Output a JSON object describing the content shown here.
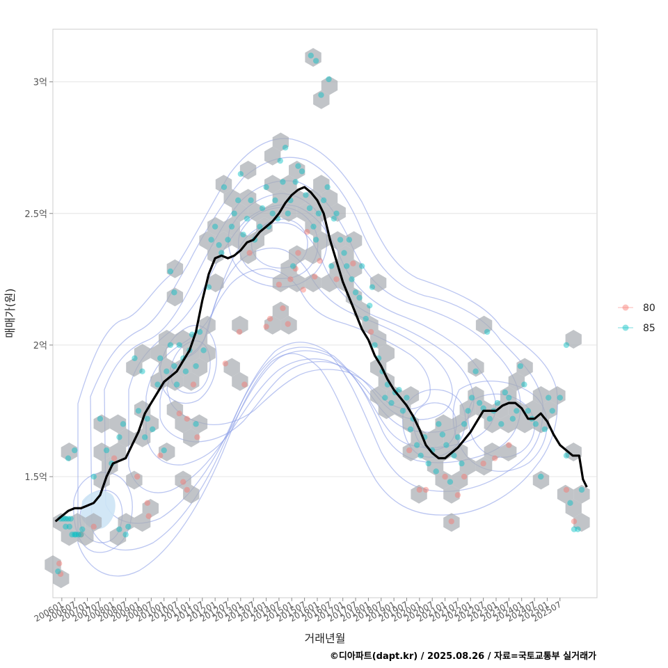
{
  "chart_data": {
    "type": "scatter",
    "xlabel": "거래년월",
    "ylabel": "매매가(원)",
    "caption": "©디아파트(dapt.kr) / 2025.08.26 / 자료=국토교통부 실거래가",
    "x_tick_labels": [
      "200601",
      "200607",
      "200701",
      "200707",
      "200801",
      "200807",
      "200901",
      "200907",
      "201001",
      "201007",
      "201101",
      "201107",
      "201201",
      "201207",
      "201301",
      "201307",
      "201401",
      "201407",
      "201501",
      "201507",
      "201601",
      "201607",
      "201701",
      "201707",
      "201801",
      "201807",
      "201901",
      "201907",
      "202001",
      "202007",
      "202101",
      "202107",
      "202201",
      "202207",
      "202301",
      "202307",
      "202401",
      "202407",
      "202501",
      "202507"
    ],
    "y_ticks": [
      {
        "value": 1.5,
        "label": "1.5억"
      },
      {
        "value": 2.0,
        "label": "2억"
      },
      {
        "value": 2.5,
        "label": "2.5억"
      },
      {
        "value": 3.0,
        "label": "3억"
      }
    ],
    "xlim": [
      -0.2,
      42.4
    ],
    "ylim": [
      1.04,
      3.2
    ],
    "grid": true,
    "legend_position": "right",
    "legend": [
      {
        "label": "80",
        "color": "#F8766D"
      },
      {
        "label": "85",
        "color": "#00BFC4"
      }
    ],
    "colors": {
      "trend": "#000000",
      "hex": "#a9adb3",
      "contour": "#8da0e8",
      "panel": "#ffffff",
      "grid": "#e4e4e4"
    },
    "trend_line": [
      [
        0.0,
        1.33
      ],
      [
        0.5,
        1.35
      ],
      [
        1.0,
        1.37
      ],
      [
        1.5,
        1.38
      ],
      [
        2.0,
        1.38
      ],
      [
        2.5,
        1.39
      ],
      [
        3.0,
        1.4
      ],
      [
        3.5,
        1.43
      ],
      [
        4.0,
        1.5
      ],
      [
        4.5,
        1.55
      ],
      [
        5.0,
        1.56
      ],
      [
        5.5,
        1.57
      ],
      [
        6.0,
        1.62
      ],
      [
        6.5,
        1.67
      ],
      [
        7.0,
        1.74
      ],
      [
        7.5,
        1.78
      ],
      [
        8.0,
        1.82
      ],
      [
        8.5,
        1.86
      ],
      [
        9.0,
        1.88
      ],
      [
        9.5,
        1.9
      ],
      [
        10.0,
        1.94
      ],
      [
        10.5,
        1.98
      ],
      [
        11.0,
        2.05
      ],
      [
        11.5,
        2.17
      ],
      [
        12.0,
        2.27
      ],
      [
        12.5,
        2.33
      ],
      [
        13.0,
        2.34
      ],
      [
        13.5,
        2.33
      ],
      [
        14.0,
        2.34
      ],
      [
        14.5,
        2.36
      ],
      [
        15.0,
        2.39
      ],
      [
        15.5,
        2.4
      ],
      [
        16.0,
        2.43
      ],
      [
        16.5,
        2.45
      ],
      [
        17.0,
        2.47
      ],
      [
        17.5,
        2.5
      ],
      [
        18.0,
        2.54
      ],
      [
        18.5,
        2.57
      ],
      [
        19.0,
        2.59
      ],
      [
        19.5,
        2.6
      ],
      [
        20.0,
        2.58
      ],
      [
        20.5,
        2.55
      ],
      [
        21.0,
        2.5
      ],
      [
        21.5,
        2.4
      ],
      [
        22.0,
        2.32
      ],
      [
        22.5,
        2.24
      ],
      [
        23.0,
        2.18
      ],
      [
        23.5,
        2.12
      ],
      [
        24.0,
        2.06
      ],
      [
        24.5,
        2.02
      ],
      [
        25.0,
        1.96
      ],
      [
        25.5,
        1.92
      ],
      [
        26.0,
        1.87
      ],
      [
        26.5,
        1.83
      ],
      [
        27.0,
        1.8
      ],
      [
        27.5,
        1.77
      ],
      [
        28.0,
        1.73
      ],
      [
        28.5,
        1.68
      ],
      [
        29.0,
        1.62
      ],
      [
        29.5,
        1.59
      ],
      [
        30.0,
        1.57
      ],
      [
        30.5,
        1.57
      ],
      [
        31.0,
        1.59
      ],
      [
        31.5,
        1.61
      ],
      [
        32.0,
        1.64
      ],
      [
        32.5,
        1.67
      ],
      [
        33.0,
        1.71
      ],
      [
        33.5,
        1.75
      ],
      [
        34.0,
        1.75
      ],
      [
        34.5,
        1.75
      ],
      [
        35.0,
        1.77
      ],
      [
        35.5,
        1.78
      ],
      [
        36.0,
        1.78
      ],
      [
        36.5,
        1.76
      ],
      [
        37.0,
        1.72
      ],
      [
        37.5,
        1.72
      ],
      [
        38.0,
        1.74
      ],
      [
        38.5,
        1.71
      ],
      [
        39.0,
        1.66
      ],
      [
        39.5,
        1.62
      ],
      [
        40.0,
        1.6
      ],
      [
        40.5,
        1.58
      ],
      [
        41.0,
        1.58
      ],
      [
        41.3,
        1.49
      ],
      [
        41.6,
        1.46
      ]
    ],
    "series": [
      {
        "name": "80",
        "points": [
          [
            0.3,
            1.17
          ],
          [
            0.4,
            1.13
          ],
          [
            2.0,
            1.28
          ],
          [
            3.0,
            1.31
          ],
          [
            4.6,
            1.57
          ],
          [
            6.4,
            1.5
          ],
          [
            7.2,
            1.4
          ],
          [
            7.3,
            1.35
          ],
          [
            8.2,
            1.58
          ],
          [
            9.7,
            1.74
          ],
          [
            10.3,
            1.72
          ],
          [
            10.8,
            1.85
          ],
          [
            11.1,
            1.65
          ],
          [
            10.0,
            1.48
          ],
          [
            10.3,
            1.45
          ],
          [
            13.3,
            1.93
          ],
          [
            14.4,
            2.05
          ],
          [
            14.8,
            1.85
          ],
          [
            15.2,
            2.35
          ],
          [
            16.5,
            2.07
          ],
          [
            16.8,
            2.1
          ],
          [
            17.5,
            2.23
          ],
          [
            17.8,
            2.14
          ],
          [
            18.2,
            2.08
          ],
          [
            18.4,
            2.25
          ],
          [
            18.8,
            2.29
          ],
          [
            19.0,
            2.35
          ],
          [
            19.4,
            2.21
          ],
          [
            19.7,
            2.43
          ],
          [
            20.3,
            2.26
          ],
          [
            20.7,
            2.32
          ],
          [
            22.0,
            2.25
          ],
          [
            23.3,
            2.31
          ],
          [
            24.7,
            2.05
          ],
          [
            27.7,
            1.6
          ],
          [
            28.5,
            1.45
          ],
          [
            29.0,
            1.45
          ],
          [
            30.5,
            1.5
          ],
          [
            31.0,
            1.33
          ],
          [
            31.5,
            1.43
          ],
          [
            32.0,
            1.5
          ],
          [
            33.5,
            1.55
          ],
          [
            34.4,
            1.57
          ],
          [
            35.5,
            1.62
          ],
          [
            40.0,
            1.45
          ],
          [
            40.6,
            1.33
          ]
        ]
      },
      {
        "name": "85",
        "points": [
          [
            0.4,
            1.34
          ],
          [
            0.6,
            1.34
          ],
          [
            0.8,
            1.34
          ],
          [
            1.0,
            1.34
          ],
          [
            1.2,
            1.34
          ],
          [
            1.3,
            1.28
          ],
          [
            1.5,
            1.28
          ],
          [
            1.6,
            1.28
          ],
          [
            1.8,
            1.28
          ],
          [
            2.0,
            1.28
          ],
          [
            0.8,
            1.31
          ],
          [
            1.1,
            1.31
          ],
          [
            2.1,
            1.3
          ],
          [
            1.0,
            1.57
          ],
          [
            1.5,
            1.6
          ],
          [
            3.0,
            1.5
          ],
          [
            3.5,
            1.72
          ],
          [
            4.0,
            1.6
          ],
          [
            4.4,
            1.55
          ],
          [
            5.0,
            1.3
          ],
          [
            5.5,
            1.28
          ],
          [
            5.7,
            1.31
          ],
          [
            5.0,
            1.65
          ],
          [
            5.3,
            1.7
          ],
          [
            6.2,
            1.95
          ],
          [
            6.5,
            1.75
          ],
          [
            6.8,
            1.9
          ],
          [
            7.0,
            1.65
          ],
          [
            7.2,
            1.72
          ],
          [
            7.6,
            1.68
          ],
          [
            8.0,
            1.85
          ],
          [
            8.2,
            1.95
          ],
          [
            8.5,
            1.6
          ],
          [
            8.7,
            1.9
          ],
          [
            9.0,
            2.0
          ],
          [
            9.3,
            1.92
          ],
          [
            9.5,
            1.85
          ],
          [
            9.0,
            2.28
          ],
          [
            9.3,
            2.2
          ],
          [
            9.7,
            2.0
          ],
          [
            10.0,
            1.95
          ],
          [
            10.2,
            1.9
          ],
          [
            10.5,
            1.98
          ],
          [
            10.7,
            2.04
          ],
          [
            11.0,
            1.92
          ],
          [
            11.3,
            2.05
          ],
          [
            11.6,
            1.98
          ],
          [
            11.0,
            1.7
          ],
          [
            12.0,
            2.22
          ],
          [
            12.2,
            2.4
          ],
          [
            12.5,
            2.45
          ],
          [
            12.8,
            2.38
          ],
          [
            13.0,
            2.35
          ],
          [
            13.2,
            2.6
          ],
          [
            13.5,
            2.4
          ],
          [
            13.8,
            2.45
          ],
          [
            14.0,
            2.5
          ],
          [
            14.3,
            2.55
          ],
          [
            14.5,
            2.65
          ],
          [
            14.7,
            2.42
          ],
          [
            15.0,
            2.48
          ],
          [
            15.3,
            2.55
          ],
          [
            15.6,
            2.4
          ],
          [
            16.0,
            2.45
          ],
          [
            16.2,
            2.52
          ],
          [
            16.5,
            2.6
          ],
          [
            16.7,
            2.45
          ],
          [
            17.0,
            2.5
          ],
          [
            17.2,
            2.55
          ],
          [
            17.4,
            2.48
          ],
          [
            17.6,
            2.7
          ],
          [
            17.8,
            2.62
          ],
          [
            18.0,
            2.75
          ],
          [
            18.2,
            2.5
          ],
          [
            18.4,
            2.55
          ],
          [
            18.6,
            2.3
          ],
          [
            18.8,
            2.62
          ],
          [
            19.0,
            2.68
          ],
          [
            19.3,
            2.66
          ],
          [
            19.6,
            2.57
          ],
          [
            19.9,
            2.52
          ],
          [
            20.2,
            2.45
          ],
          [
            20.4,
            2.4
          ],
          [
            20.6,
            2.5
          ],
          [
            20.0,
            3.1
          ],
          [
            20.4,
            3.08
          ],
          [
            20.8,
            2.95
          ],
          [
            21.4,
            3.01
          ],
          [
            21.0,
            2.55
          ],
          [
            21.3,
            2.6
          ],
          [
            21.6,
            2.3
          ],
          [
            21.8,
            2.48
          ],
          [
            22.0,
            2.5
          ],
          [
            22.3,
            2.4
          ],
          [
            22.6,
            2.35
          ],
          [
            22.8,
            2.3
          ],
          [
            23.0,
            2.4
          ],
          [
            23.2,
            2.25
          ],
          [
            23.5,
            2.2
          ],
          [
            23.8,
            2.18
          ],
          [
            24.0,
            2.3
          ],
          [
            24.3,
            2.1
          ],
          [
            24.6,
            2.15
          ],
          [
            24.8,
            2.22
          ],
          [
            25.0,
            2.0
          ],
          [
            25.3,
            1.95
          ],
          [
            25.6,
            1.9
          ],
          [
            25.8,
            1.8
          ],
          [
            26.0,
            1.85
          ],
          [
            26.3,
            1.78
          ],
          [
            26.6,
            1.82
          ],
          [
            26.9,
            1.83
          ],
          [
            27.2,
            1.75
          ],
          [
            27.5,
            1.8
          ],
          [
            27.8,
            1.68
          ],
          [
            28.0,
            1.72
          ],
          [
            28.3,
            1.62
          ],
          [
            28.6,
            1.58
          ],
          [
            28.9,
            1.65
          ],
          [
            29.2,
            1.55
          ],
          [
            29.5,
            1.6
          ],
          [
            29.8,
            1.52
          ],
          [
            30.0,
            1.7
          ],
          [
            30.3,
            1.66
          ],
          [
            30.6,
            1.62
          ],
          [
            30.9,
            1.48
          ],
          [
            31.2,
            1.58
          ],
          [
            31.5,
            1.65
          ],
          [
            31.8,
            1.55
          ],
          [
            32.0,
            1.7
          ],
          [
            32.3,
            1.75
          ],
          [
            32.6,
            1.8
          ],
          [
            32.9,
            1.9
          ],
          [
            33.2,
            1.78
          ],
          [
            33.5,
            1.76
          ],
          [
            33.8,
            2.05
          ],
          [
            34.0,
            1.72
          ],
          [
            34.3,
            1.75
          ],
          [
            34.6,
            1.78
          ],
          [
            34.9,
            1.7
          ],
          [
            35.2,
            1.82
          ],
          [
            35.5,
            1.8
          ],
          [
            35.8,
            1.72
          ],
          [
            36.1,
            1.75
          ],
          [
            36.4,
            1.92
          ],
          [
            36.7,
            1.85
          ],
          [
            37.0,
            1.75
          ],
          [
            37.3,
            1.72
          ],
          [
            37.6,
            1.7
          ],
          [
            38.0,
            1.5
          ],
          [
            38.3,
            1.68
          ],
          [
            38.6,
            1.8
          ],
          [
            38.9,
            1.75
          ],
          [
            39.5,
            1.8
          ],
          [
            40.0,
            1.58
          ],
          [
            40.3,
            1.4
          ],
          [
            40.6,
            1.3
          ],
          [
            40.9,
            1.3
          ],
          [
            41.2,
            1.45
          ],
          [
            40.0,
            2.0
          ],
          [
            0.2,
            1.14
          ]
        ]
      }
    ]
  }
}
